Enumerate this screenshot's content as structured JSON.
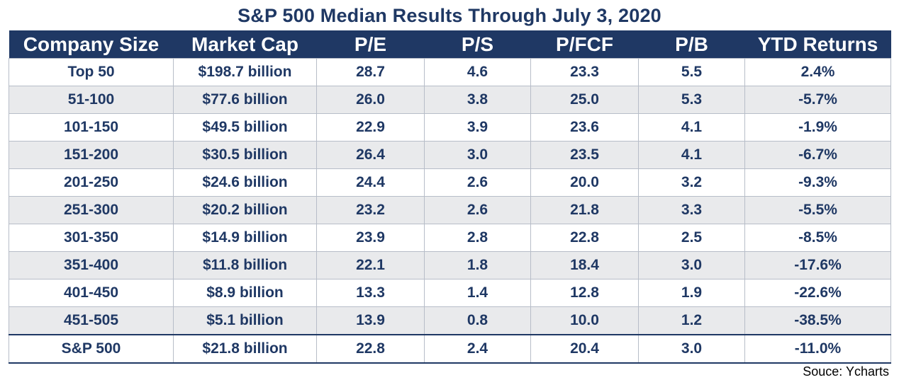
{
  "title": "S&P 500 Median Results Through July 3, 2020",
  "table": {
    "headers": [
      "Company Size",
      "Market Cap",
      "P/E",
      "P/S",
      "P/FCF",
      "P/B",
      "YTD Returns"
    ],
    "rows": [
      [
        "Top 50",
        "$198.7 billion",
        "28.7",
        "4.6",
        "23.3",
        "5.5",
        "2.4%"
      ],
      [
        "51-100",
        "$77.6 billion",
        "26.0",
        "3.8",
        "25.0",
        "5.3",
        "-5.7%"
      ],
      [
        "101-150",
        "$49.5 billion",
        "22.9",
        "3.9",
        "23.6",
        "4.1",
        "-1.9%"
      ],
      [
        "151-200",
        "$30.5 billion",
        "26.4",
        "3.0",
        "23.5",
        "4.1",
        "-6.7%"
      ],
      [
        "201-250",
        "$24.6 billion",
        "24.4",
        "2.6",
        "20.0",
        "3.2",
        "-9.3%"
      ],
      [
        "251-300",
        "$20.2 billion",
        "23.2",
        "2.6",
        "21.8",
        "3.3",
        "-5.5%"
      ],
      [
        "301-350",
        "$14.9 billion",
        "23.9",
        "2.8",
        "22.8",
        "2.5",
        "-8.5%"
      ],
      [
        "351-400",
        "$11.8 billion",
        "22.1",
        "1.8",
        "18.4",
        "3.0",
        "-17.6%"
      ],
      [
        "401-450",
        "$8.9 billion",
        "13.3",
        "1.4",
        "12.8",
        "1.9",
        "-22.6%"
      ],
      [
        "451-505",
        "$5.1 billion",
        "13.9",
        "0.8",
        "10.0",
        "1.2",
        "-38.5%"
      ]
    ],
    "total": [
      "S&P 500",
      "$21.8 billion",
      "22.8",
      "2.4",
      "20.4",
      "3.0",
      "-11.0%"
    ]
  },
  "source": "Souce: Ycharts",
  "colors": {
    "header_bg": "#1f3864",
    "text": "#1f3864",
    "stripe": "#e9eaec"
  }
}
